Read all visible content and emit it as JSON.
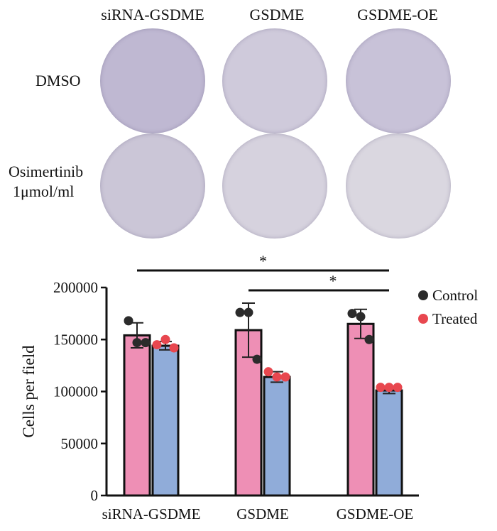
{
  "image_panel": {
    "column_headers": [
      "siRNA-GSDME",
      "GSDME",
      "GSDME-OE"
    ],
    "row_labels": [
      {
        "line1": "DMSO",
        "line2": ""
      },
      {
        "line1": "Osimertinib",
        "line2": "1μmol/ml"
      }
    ],
    "well_tints": [
      [
        "#bfb8d2",
        "#cfcadb",
        "#c8c2d8"
      ],
      [
        "#cbc6d7",
        "#d6d2de",
        "#dad7e0"
      ]
    ]
  },
  "chart_data": {
    "type": "bar",
    "categories": [
      "siRNA-GSDME",
      "GSDME",
      "GSDME-OE"
    ],
    "ylabel": "Cells per field",
    "ylim": [
      0,
      200000
    ],
    "yticks": [
      0,
      50000,
      100000,
      150000,
      200000
    ],
    "series": [
      {
        "name": "Control",
        "color": "#ee8fb5",
        "dot_color": "#2b2b2b",
        "values": [
          154000,
          159000,
          165000
        ],
        "errors": [
          12000,
          26000,
          14000
        ],
        "points": [
          [
            168000,
            147000,
            147000
          ],
          [
            176000,
            176000,
            131000
          ],
          [
            175000,
            172000,
            150000
          ]
        ]
      },
      {
        "name": "Treated",
        "color": "#90acd9",
        "dot_color": "#e8474f",
        "values": [
          144000,
          114000,
          101000
        ],
        "errors": [
          4000,
          5000,
          3000
        ],
        "points": [
          [
            145000,
            150000,
            142000
          ],
          [
            119000,
            114000,
            114000
          ],
          [
            104000,
            104000,
            104000
          ]
        ]
      }
    ],
    "significance": [
      {
        "from_category": 0,
        "to_category": 2,
        "label": "*"
      },
      {
        "from_category": 1,
        "to_category": 2,
        "label": "*"
      }
    ],
    "legend_position": "right"
  }
}
